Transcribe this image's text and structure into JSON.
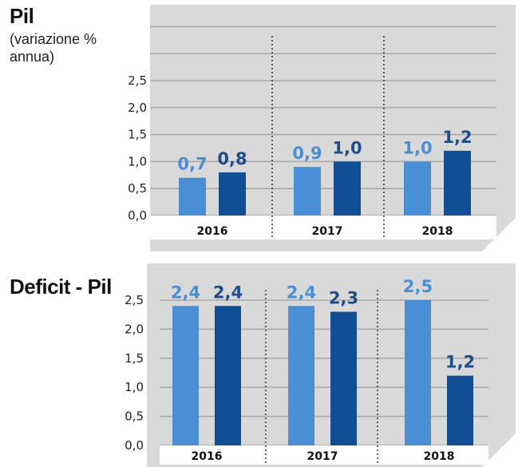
{
  "chart_data": [
    {
      "type": "bar",
      "title": "Pil",
      "subtitle": "(variazione % annua)",
      "categories": [
        "2016",
        "2017",
        "2018"
      ],
      "yticks": [
        "0,0",
        "0,5",
        "1,0",
        "1,5",
        "2,0",
        "2,5"
      ],
      "ylim": [
        0,
        2.5
      ],
      "grid": true,
      "series": [
        {
          "values": [
            0.7,
            0.9,
            1.0
          ],
          "labels": [
            "0,7",
            "0,9",
            "1,0"
          ],
          "color": "#4a8fd6",
          "label_color": "#4a8fd6"
        },
        {
          "values": [
            0.8,
            1.0,
            1.2
          ],
          "labels": [
            "0,8",
            "1,0",
            "1,2"
          ],
          "color": "#124e96",
          "label_color": "#1f4d8a"
        }
      ]
    },
    {
      "type": "bar",
      "title": "Deficit - Pil",
      "categories": [
        "2016",
        "2017",
        "2018"
      ],
      "yticks": [
        "0,0",
        "0,5",
        "1,0",
        "1,5",
        "2,0",
        "2,5"
      ],
      "ylim": [
        0,
        2.5
      ],
      "grid": true,
      "series": [
        {
          "values": [
            2.4,
            2.4,
            2.5
          ],
          "labels": [
            "2,4",
            "2,4",
            "2,5"
          ],
          "color": "#4a8fd6",
          "label_color": "#4a8fd6"
        },
        {
          "values": [
            2.4,
            2.3,
            1.2
          ],
          "labels": [
            "2,4",
            "2,3",
            "1,2"
          ],
          "color": "#124e96",
          "label_color": "#1f4d8a"
        }
      ]
    }
  ],
  "colors": {
    "panel_bg": "#d9d9d9",
    "grid": "#a9a9a9"
  }
}
